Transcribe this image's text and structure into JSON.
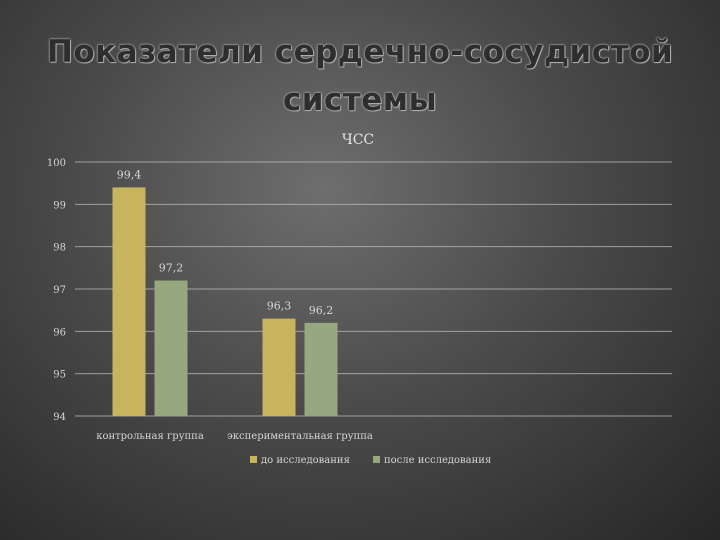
{
  "slide": {
    "title_line1": "Показатели сердечно-сосудистой",
    "title_line2": "системы"
  },
  "chart_data": {
    "type": "bar",
    "title": "ЧСС",
    "categories": [
      "контрольная группа",
      "экспериментальная группа"
    ],
    "series": [
      {
        "name": "до исследования",
        "values": [
          99.4,
          96.3
        ],
        "labels": [
          "99,4",
          "96,3"
        ],
        "color": "#c9b45e"
      },
      {
        "name": "после исследования",
        "values": [
          97.2,
          96.2
        ],
        "labels": [
          "97,2",
          "96,2"
        ],
        "color": "#98a87e"
      }
    ],
    "yticks": [
      "100",
      "99",
      "98",
      "97",
      "96",
      "95",
      "94"
    ],
    "ylim": [
      94,
      100
    ],
    "grid": true,
    "legend": "bottom"
  }
}
